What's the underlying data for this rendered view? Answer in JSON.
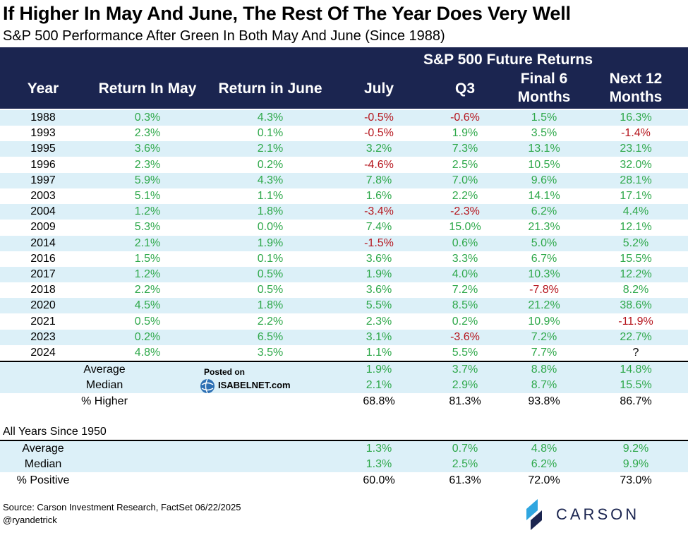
{
  "title": "If Higher In May And June, The Rest Of The Year Does Very Well",
  "subtitle": "S&P 500 Performance After Green In Both May And June (Since 1988)",
  "header": {
    "future_returns": "S&P 500 Future Returns",
    "columns": [
      "Year",
      "Return In May",
      "Return in June",
      "July",
      "Q3",
      "Final 6\nMonths",
      "Next 12\nMonths"
    ]
  },
  "chart_data": {
    "type": "table",
    "columns": [
      "Year",
      "Return In May",
      "Return in June",
      "July",
      "Q3",
      "Final 6 Months",
      "Next 12 Months"
    ],
    "rows": [
      [
        "1988",
        "0.3%",
        "4.3%",
        "-0.5%",
        "-0.6%",
        "1.5%",
        "16.3%"
      ],
      [
        "1993",
        "2.3%",
        "0.1%",
        "-0.5%",
        "1.9%",
        "3.5%",
        "-1.4%"
      ],
      [
        "1995",
        "3.6%",
        "2.1%",
        "3.2%",
        "7.3%",
        "13.1%",
        "23.1%"
      ],
      [
        "1996",
        "2.3%",
        "0.2%",
        "-4.6%",
        "2.5%",
        "10.5%",
        "32.0%"
      ],
      [
        "1997",
        "5.9%",
        "4.3%",
        "7.8%",
        "7.0%",
        "9.6%",
        "28.1%"
      ],
      [
        "2003",
        "5.1%",
        "1.1%",
        "1.6%",
        "2.2%",
        "14.1%",
        "17.1%"
      ],
      [
        "2004",
        "1.2%",
        "1.8%",
        "-3.4%",
        "-2.3%",
        "6.2%",
        "4.4%"
      ],
      [
        "2009",
        "5.3%",
        "0.0%",
        "7.4%",
        "15.0%",
        "21.3%",
        "12.1%"
      ],
      [
        "2014",
        "2.1%",
        "1.9%",
        "-1.5%",
        "0.6%",
        "5.0%",
        "5.2%"
      ],
      [
        "2016",
        "1.5%",
        "0.1%",
        "3.6%",
        "3.3%",
        "6.7%",
        "15.5%"
      ],
      [
        "2017",
        "1.2%",
        "0.5%",
        "1.9%",
        "4.0%",
        "10.3%",
        "12.2%"
      ],
      [
        "2018",
        "2.2%",
        "0.5%",
        "3.6%",
        "7.2%",
        "-7.8%",
        "8.2%"
      ],
      [
        "2020",
        "4.5%",
        "1.8%",
        "5.5%",
        "8.5%",
        "21.2%",
        "38.6%"
      ],
      [
        "2021",
        "0.5%",
        "2.2%",
        "2.3%",
        "0.2%",
        "10.9%",
        "-11.9%"
      ],
      [
        "2023",
        "0.2%",
        "6.5%",
        "3.1%",
        "-3.6%",
        "7.2%",
        "22.7%"
      ],
      [
        "2024",
        "4.8%",
        "3.5%",
        "1.1%",
        "5.5%",
        "7.7%",
        "?"
      ]
    ],
    "summary": [
      {
        "label": "Average",
        "values": [
          "1.9%",
          "3.7%",
          "8.8%",
          "14.8%"
        ]
      },
      {
        "label": "Median",
        "values": [
          "2.1%",
          "2.9%",
          "8.7%",
          "15.5%"
        ]
      },
      {
        "label": "% Higher",
        "values": [
          "68.8%",
          "81.3%",
          "93.8%",
          "86.7%"
        ]
      }
    ],
    "all_years_title": "All Years Since 1950",
    "all_years": [
      {
        "label": "Average",
        "values": [
          "1.3%",
          "0.7%",
          "4.8%",
          "9.2%"
        ]
      },
      {
        "label": "Median",
        "values": [
          "1.3%",
          "2.5%",
          "6.2%",
          "9.9%"
        ]
      },
      {
        "label": "% Positive",
        "values": [
          "60.0%",
          "61.3%",
          "72.0%",
          "73.0%"
        ]
      }
    ]
  },
  "watermark": {
    "posted": "Posted on",
    "site": "ISABELNET.com"
  },
  "source_lines": [
    "Source: Carson Investment Research, FactSet 06/22/2025",
    "@ryandetrick"
  ],
  "logo_text": "CARSON",
  "colors": {
    "header_bg": "#1b2550",
    "row_shade": "#dcf0f8",
    "positive": "#2ea84a",
    "negative": "#b5141c"
  }
}
